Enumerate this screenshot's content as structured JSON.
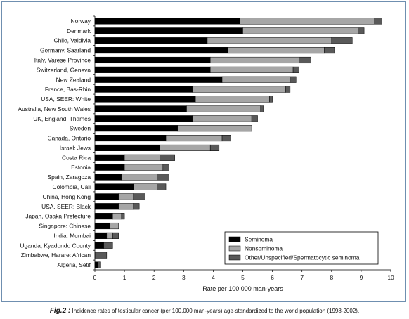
{
  "chart_data": {
    "type": "bar",
    "orientation": "horizontal",
    "stacked": true,
    "title": "",
    "xlabel": "Rate per 100,000 man-years",
    "ylabel": "",
    "xlim": [
      0,
      10
    ],
    "xticks": [
      "0",
      "1",
      "2",
      "3",
      "4",
      "5",
      "6",
      "7",
      "8",
      "9",
      "10"
    ],
    "grid": false,
    "legend_position": "bottom-right",
    "categories": [
      "Norway",
      "Denmark",
      "Chile, Valdivia",
      "Germany, Saarland",
      "Italy, Varese Province",
      "Switzerland, Geneva",
      "New Zealand",
      "France, Bas-Rhin",
      "USA, SEER: White",
      "Australia, New South Wales",
      "UK, England, Thames",
      "Sweden",
      "Canada, Ontario",
      "Israel: Jews",
      "Costa Rica",
      "Estonia",
      "Spain, Zaragoza",
      "Colombia, Cali",
      "China, Hong Kong",
      "USA, SEER: Black",
      "Japan, Osaka Prefecture",
      "Singapore: Chinese",
      "India, Mumbai",
      "Uganda, Kyadondo County",
      "Zimbabwe, Harare: African",
      "Algeria, Setif"
    ],
    "series": [
      {
        "name": "Seminoma",
        "color": "#000000",
        "values": [
          4.9,
          5.0,
          3.8,
          4.5,
          3.9,
          3.9,
          4.3,
          3.3,
          3.4,
          3.1,
          3.3,
          2.8,
          2.4,
          2.2,
          1.0,
          1.0,
          0.9,
          1.3,
          0.8,
          0.8,
          0.6,
          0.5,
          0.4,
          0.3,
          0.0,
          0.1
        ]
      },
      {
        "name": "Nonseminoma",
        "color": "#a6a6a6",
        "values": [
          4.55,
          3.9,
          4.2,
          3.25,
          3.0,
          2.8,
          2.3,
          3.15,
          2.5,
          2.5,
          2.0,
          2.5,
          1.9,
          1.7,
          1.2,
          1.3,
          1.2,
          0.8,
          0.5,
          0.5,
          0.3,
          0.3,
          0.2,
          0.0,
          0.0,
          0.0
        ]
      },
      {
        "name": "Other/Unspecified/Spermatocytic seminoma",
        "color": "#595959",
        "values": [
          0.25,
          0.2,
          0.7,
          0.35,
          0.4,
          0.2,
          0.2,
          0.15,
          0.1,
          0.1,
          0.2,
          0.0,
          0.3,
          0.3,
          0.5,
          0.2,
          0.4,
          0.3,
          0.4,
          0.2,
          0.1,
          0.0,
          0.2,
          0.3,
          0.4,
          0.1
        ]
      }
    ]
  },
  "caption": {
    "lead": "Fig.2 :",
    "text": " Incidence rates of testicular cancer (per 100,000 man-years) age-standardized to the world population (1998-2002)."
  }
}
